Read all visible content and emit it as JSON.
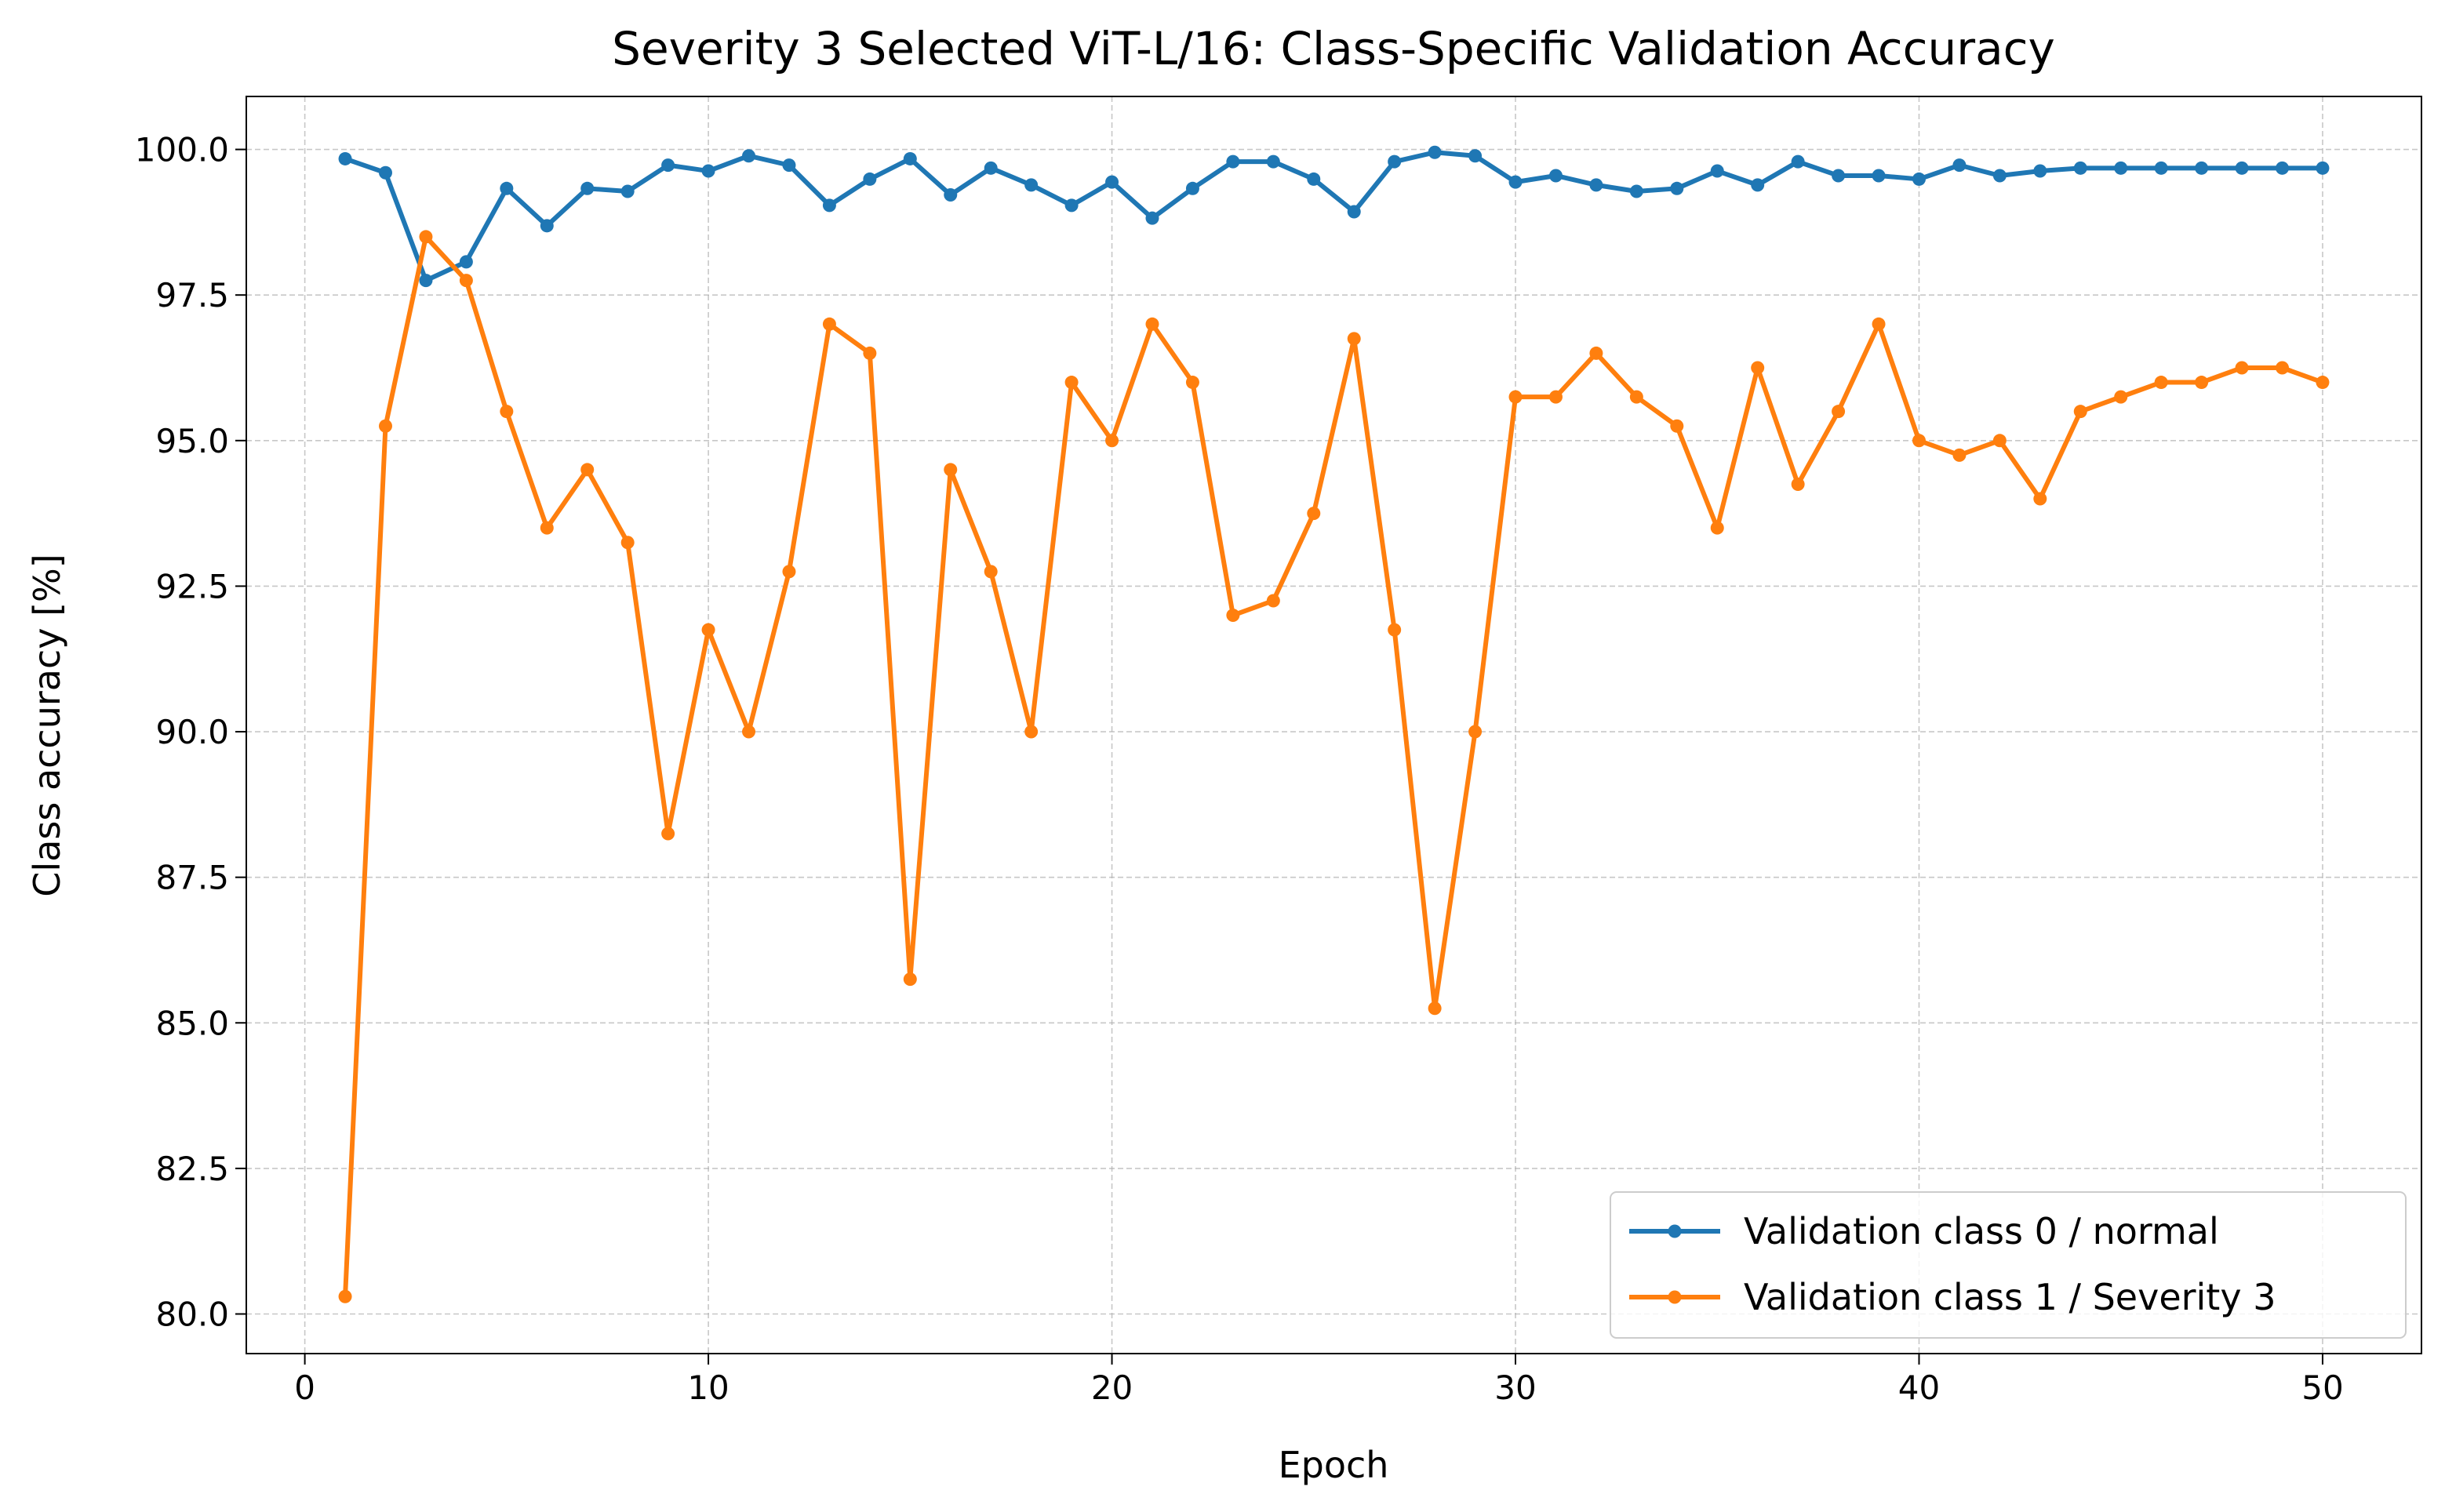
{
  "chart_data": {
    "type": "line",
    "title": "Severity 3 Selected ViT-L/16: Class-Specific Validation Accuracy",
    "xlabel": "Epoch",
    "ylabel": "Class accuracy [%]",
    "x": [
      1,
      2,
      3,
      4,
      5,
      6,
      7,
      8,
      9,
      10,
      11,
      12,
      13,
      14,
      15,
      16,
      17,
      18,
      19,
      20,
      21,
      22,
      23,
      24,
      25,
      26,
      27,
      28,
      29,
      30,
      31,
      32,
      33,
      34,
      35,
      36,
      37,
      38,
      39,
      40,
      41,
      42,
      43,
      44,
      45,
      46,
      47,
      48,
      49,
      50
    ],
    "series": [
      {
        "name": "Validation class 0 / normal",
        "color": "#1f77b4",
        "values": [
          99.84,
          99.6,
          97.75,
          98.07,
          99.33,
          98.69,
          99.33,
          99.28,
          99.73,
          99.63,
          99.89,
          99.73,
          99.04,
          99.49,
          99.84,
          99.22,
          99.68,
          99.39,
          99.04,
          99.44,
          98.82,
          99.33,
          99.79,
          99.79,
          99.49,
          98.93,
          99.79,
          99.95,
          99.89,
          99.44,
          99.55,
          99.39,
          99.28,
          99.33,
          99.63,
          99.39,
          99.79,
          99.55,
          99.55,
          99.49,
          99.73,
          99.55,
          99.63,
          99.68,
          99.68,
          99.68,
          99.68,
          99.68,
          99.68,
          99.68
        ]
      },
      {
        "name": "Validation class 1 / Severity 3",
        "color": "#ff7f0e",
        "values": [
          80.3,
          95.25,
          98.5,
          97.75,
          95.5,
          93.5,
          94.5,
          93.25,
          88.25,
          91.75,
          90.0,
          92.75,
          97.0,
          96.5,
          85.75,
          94.5,
          92.75,
          90.0,
          96.0,
          95.0,
          97.0,
          96.0,
          92.0,
          92.25,
          93.75,
          96.75,
          91.75,
          85.25,
          90.0,
          95.75,
          95.75,
          96.5,
          95.75,
          95.25,
          93.5,
          96.25,
          94.25,
          95.5,
          97.0,
          95.0,
          94.75,
          95.0,
          94.0,
          95.5,
          95.75,
          96.0,
          96.0,
          96.25,
          96.25,
          96.0
        ]
      }
    ],
    "xlim": [
      -1.45,
      52.45
    ],
    "xticks": [
      0,
      10,
      20,
      30,
      40,
      50
    ],
    "ylim": [
      79.32,
      100.91
    ],
    "yticks": [
      {
        "value": 80,
        "label": "80.0"
      },
      82.5,
      {
        "value": 85,
        "label": "85.0"
      },
      87.5,
      {
        "value": 90,
        "label": "90.0"
      },
      92.5,
      {
        "value": 95,
        "label": "95.0"
      },
      97.5,
      {
        "value": 100,
        "label": "100.0"
      }
    ],
    "grid": true,
    "legend": "lower right"
  }
}
